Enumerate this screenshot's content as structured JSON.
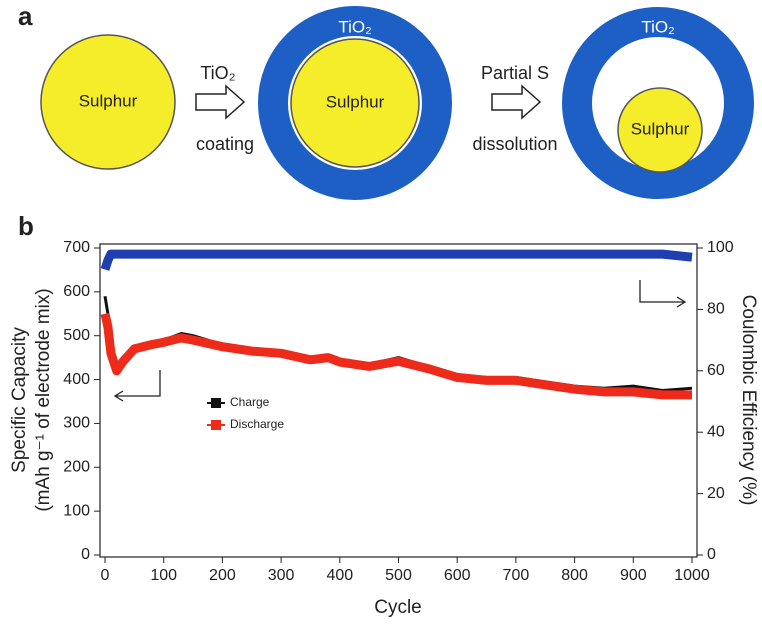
{
  "diagram": {
    "panel": "a",
    "left_core": "Sulphur",
    "arrow1_top": "TiO₂",
    "arrow1_bottom": "coating",
    "middle_shell": "TiO₂",
    "middle_core": "Sulphur",
    "arrow2_top": "Partial S",
    "arrow2_bottom": "dissolution",
    "right_shell": "TiO₂",
    "right_core": "Sulphur"
  },
  "chart_data": {
    "type": "line",
    "panel": "b",
    "x_label": "Cycle",
    "y_label": [
      "Specific Capacity",
      "(mAh g⁻¹ of electrode mix)"
    ],
    "y2_label": "Coulombic Efficiency (%)",
    "x": [
      0,
      5,
      10,
      20,
      30,
      50,
      80,
      100,
      130,
      150,
      200,
      250,
      300,
      350,
      380,
      400,
      450,
      500,
      550,
      600,
      650,
      700,
      750,
      800,
      850,
      900,
      950,
      1000
    ],
    "series": [
      {
        "name": "Charge",
        "color": "#111111",
        "values": [
          590,
          550,
          480,
          430,
          450,
          475,
          485,
          490,
          505,
          500,
          480,
          470,
          465,
          450,
          455,
          445,
          435,
          450,
          430,
          410,
          405,
          405,
          395,
          385,
          380,
          385,
          375,
          380
        ]
      },
      {
        "name": "Discharge",
        "color": "#ee2a1b",
        "values": [
          550,
          520,
          460,
          420,
          440,
          470,
          480,
          485,
          495,
          490,
          475,
          465,
          460,
          445,
          450,
          440,
          430,
          442,
          425,
          405,
          398,
          398,
          388,
          378,
          372,
          372,
          365,
          365
        ]
      },
      {
        "color": "#1f3fb0",
        "axis": "y2",
        "values": [
          93,
          96,
          98,
          98,
          98,
          98,
          98,
          98,
          98,
          98,
          98,
          98,
          98,
          98,
          98,
          98,
          98,
          98,
          98,
          98,
          98,
          98,
          98,
          98,
          98,
          98,
          98,
          97
        ]
      }
    ],
    "xlim": [
      0,
      1000
    ],
    "xticks": [
      0,
      100,
      200,
      300,
      400,
      500,
      600,
      700,
      800,
      900,
      1000
    ],
    "ylim": [
      0,
      700
    ],
    "yticks": [
      0,
      100,
      200,
      300,
      400,
      500,
      600,
      700
    ],
    "y2lim": [
      0,
      100
    ],
    "y2ticks": [
      0,
      20,
      40,
      60,
      80,
      100
    ],
    "grid": false
  }
}
